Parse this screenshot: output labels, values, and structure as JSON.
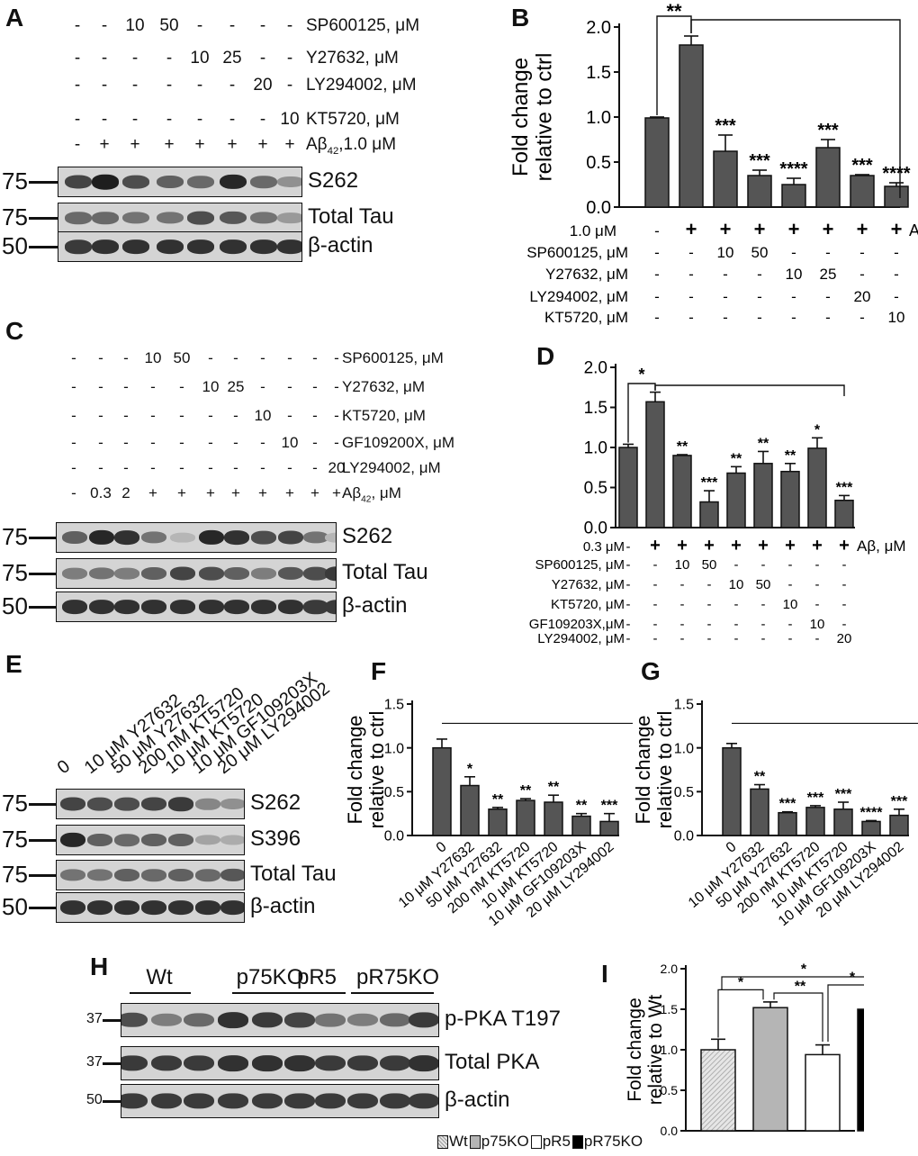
{
  "panels": {
    "A": {
      "letter": "A",
      "treatments": [
        {
          "label": "SP600125, μM",
          "values": [
            "-",
            "-",
            "10",
            "50",
            "-",
            "-",
            "-",
            "-"
          ]
        },
        {
          "label": "Y27632,     μM",
          "values": [
            "-",
            "-",
            "-",
            "-",
            "10",
            "25",
            "-",
            "-"
          ]
        },
        {
          "label": "LY294002, μM",
          "values": [
            "-",
            "-",
            "-",
            "-",
            "-",
            "-",
            "20",
            "-"
          ]
        },
        {
          "label": "KT5720,     μM",
          "values": [
            "-",
            "-",
            "-",
            "-",
            "-",
            "-",
            "-",
            "10"
          ]
        },
        {
          "label": "Aβ42,1.0 μM",
          "values": [
            "-",
            "+",
            "+",
            "+",
            "+",
            "+",
            "+",
            "+"
          ]
        }
      ],
      "blots": [
        {
          "name": "S262",
          "mw": "75",
          "intensity": [
            0.75,
            0.95,
            0.7,
            0.6,
            0.55,
            0.9,
            0.55,
            0.35
          ]
        },
        {
          "name": "Total Tau",
          "mw": "75",
          "intensity": [
            0.55,
            0.55,
            0.5,
            0.5,
            0.7,
            0.65,
            0.5,
            0.3
          ]
        },
        {
          "name": "β-actin",
          "mw": "50",
          "intensity": [
            0.8,
            0.85,
            0.85,
            0.85,
            0.85,
            0.85,
            0.85,
            0.85
          ]
        }
      ]
    },
    "C": {
      "letter": "C",
      "treatments": [
        {
          "label": "SP600125, μM",
          "values": [
            "-",
            "-",
            "-",
            "10",
            "50",
            "-",
            "-",
            "-",
            "-",
            "-",
            "-"
          ]
        },
        {
          "label": "Y27632,     μM",
          "values": [
            "-",
            "-",
            "-",
            "-",
            "-",
            "10",
            "25",
            "-",
            "-",
            "-",
            "-"
          ]
        },
        {
          "label": "KT5720,     μM",
          "values": [
            "-",
            "-",
            "-",
            "-",
            "-",
            "-",
            "-",
            "10",
            "-",
            "-",
            "-"
          ]
        },
        {
          "label": "GF109200X, μM",
          "values": [
            "-",
            "-",
            "-",
            "-",
            "-",
            "-",
            "-",
            "-",
            "10",
            "-",
            "-"
          ]
        },
        {
          "label": "LY294002, μM",
          "values": [
            "-",
            "-",
            "-",
            "-",
            "-",
            "-",
            "-",
            "-",
            "-",
            "-",
            "20"
          ]
        },
        {
          "label": "Aβ42, μM",
          "values": [
            "-",
            "0.3",
            "2",
            "+",
            "+",
            "+",
            "+",
            "+",
            "+",
            "+",
            "+"
          ]
        }
      ],
      "blots": [
        {
          "name": "S262",
          "mw": "75",
          "intensity": [
            0.6,
            0.9,
            0.85,
            0.5,
            0.15,
            0.9,
            0.85,
            0.7,
            0.75,
            0.5,
            0.15
          ]
        },
        {
          "name": "Total Tau",
          "mw": "75",
          "intensity": [
            0.45,
            0.5,
            0.45,
            0.6,
            0.75,
            0.7,
            0.6,
            0.45,
            0.65,
            0.7,
            0.8
          ]
        },
        {
          "name": "β-actin",
          "mw": "50",
          "intensity": [
            0.85,
            0.85,
            0.85,
            0.85,
            0.85,
            0.85,
            0.85,
            0.85,
            0.85,
            0.8,
            0.8
          ]
        }
      ]
    },
    "E": {
      "letter": "E",
      "lane_labels": [
        "0",
        "10 μM Y27632",
        "50 μM Y27632",
        "200 nM KT5720",
        "10 μM KT5720",
        "10 μM GF109203X",
        "20 μM LY294002"
      ],
      "blots": [
        {
          "name": "S262",
          "mw": "75",
          "intensity": [
            0.75,
            0.7,
            0.7,
            0.75,
            0.8,
            0.4,
            0.35
          ]
        },
        {
          "name": "S396",
          "mw": "75",
          "intensity": [
            0.9,
            0.6,
            0.55,
            0.6,
            0.6,
            0.25,
            0.2
          ]
        },
        {
          "name": "Total Tau",
          "mw": "75",
          "intensity": [
            0.5,
            0.5,
            0.6,
            0.55,
            0.6,
            0.55,
            0.65
          ]
        },
        {
          "name": "β-actin",
          "mw": "50",
          "intensity": [
            0.85,
            0.85,
            0.85,
            0.85,
            0.85,
            0.85,
            0.85
          ]
        }
      ]
    },
    "H": {
      "letter": "H",
      "groups": [
        "Wt",
        "p75KO",
        "pR5",
        "pR75KO"
      ],
      "blots": [
        {
          "name": "p-PKA T197",
          "mw": "37",
          "intensity": [
            0.7,
            0.45,
            0.55,
            0.85,
            0.8,
            0.75,
            0.5,
            0.45,
            0.55,
            0.8,
            0.75,
            0.7
          ]
        },
        {
          "name": "Total PKA",
          "mw": "37",
          "intensity": [
            0.8,
            0.8,
            0.8,
            0.85,
            0.85,
            0.85,
            0.8,
            0.8,
            0.8,
            0.85,
            0.85,
            0.85
          ]
        },
        {
          "name": "β-actin",
          "mw": "50",
          "intensity": [
            0.8,
            0.8,
            0.8,
            0.8,
            0.8,
            0.8,
            0.8,
            0.8,
            0.8,
            0.8,
            0.8,
            0.8
          ]
        }
      ]
    }
  },
  "chart_data": [
    {
      "panel": "B",
      "type": "bar",
      "ylabel": "Fold change relative to ctrl",
      "ylim": [
        0,
        2.0
      ],
      "yticks": [
        "0.0",
        "0.5",
        "1.0",
        "1.5",
        "2.0"
      ],
      "values": [
        0.99,
        1.8,
        0.62,
        0.35,
        0.25,
        0.66,
        0.35,
        0.23
      ],
      "errors": [
        0.01,
        0.1,
        0.18,
        0.06,
        0.07,
        0.09,
        0.01,
        0.04
      ],
      "significance": [
        "",
        "",
        "***",
        "***",
        "****",
        "***",
        "***",
        "****"
      ],
      "bracket_labels": [
        "**"
      ],
      "condition_rows": [
        {
          "label": "1.0 μM",
          "suffix": "Aβ",
          "values": [
            "-",
            "+",
            "+",
            "+",
            "+",
            "+",
            "+",
            "+"
          ]
        },
        {
          "label": "SP600125, μM",
          "values": [
            "-",
            "-",
            "10",
            "50",
            "-",
            "-",
            "-",
            "-"
          ]
        },
        {
          "label": "Y27632, μM",
          "values": [
            "-",
            "-",
            "-",
            "-",
            "10",
            "25",
            "-",
            "-"
          ]
        },
        {
          "label": "LY294002, μM",
          "values": [
            "-",
            "-",
            "-",
            "-",
            "-",
            "-",
            "20",
            "-"
          ]
        },
        {
          "label": "KT5720, μM",
          "values": [
            "-",
            "-",
            "-",
            "-",
            "-",
            "-",
            "-",
            "10"
          ]
        }
      ]
    },
    {
      "panel": "D",
      "type": "bar",
      "ylabel": "",
      "ylim": [
        0,
        2.0
      ],
      "yticks": [
        "0.0",
        "0.5",
        "1.0",
        "1.5",
        "2.0"
      ],
      "values": [
        1.0,
        1.57,
        0.9,
        0.32,
        0.68,
        0.8,
        0.7,
        0.99,
        0.34
      ],
      "errors": [
        0.04,
        0.12,
        0.01,
        0.14,
        0.08,
        0.15,
        0.1,
        0.13,
        0.06
      ],
      "significance": [
        "",
        "",
        "**",
        "***",
        "**",
        "**",
        "**",
        "*",
        "***"
      ],
      "bracket_labels": [
        "*"
      ],
      "condition_rows": [
        {
          "label": "0.3 μM",
          "suffix": "Aβ, μM",
          "values": [
            "-",
            "+",
            "+",
            "+",
            "+",
            "+",
            "+",
            "+",
            "+"
          ]
        },
        {
          "label": "SP600125, μM",
          "values": [
            "-",
            "-",
            "10",
            "50",
            "-",
            "-",
            "-",
            "-",
            "-"
          ]
        },
        {
          "label": "Y27632, μM",
          "values": [
            "-",
            "-",
            "-",
            "-",
            "10",
            "50",
            "-",
            "-",
            "-"
          ]
        },
        {
          "label": "KT5720, μM",
          "values": [
            "-",
            "-",
            "-",
            "-",
            "-",
            "-",
            "10",
            "-",
            "-"
          ]
        },
        {
          "label": "GF109203X,μM",
          "values": [
            "-",
            "-",
            "-",
            "-",
            "-",
            "-",
            "-",
            "10",
            "-"
          ]
        },
        {
          "label": "LY294002, μM",
          "values": [
            "-",
            "-",
            "-",
            "-",
            "-",
            "-",
            "-",
            "-",
            "20"
          ]
        }
      ]
    },
    {
      "panel": "F",
      "type": "bar",
      "ylabel": "Fold change relative to ctrl",
      "ylim": [
        0,
        1.5
      ],
      "yticks": [
        "0.0",
        "0.5",
        "1.0",
        "1.5"
      ],
      "categories": [
        "0",
        "10 μM Y27632",
        "50 μM Y27632",
        "200 nM KT5720",
        "10 μM KT5720",
        "10 μM GF109203X",
        "20 μM LY294002"
      ],
      "values": [
        1.0,
        0.57,
        0.3,
        0.4,
        0.38,
        0.22,
        0.16
      ],
      "errors": [
        0.1,
        0.1,
        0.02,
        0.02,
        0.08,
        0.03,
        0.09
      ],
      "significance": [
        "",
        "*",
        "**",
        "**",
        "**",
        "**",
        "***"
      ]
    },
    {
      "panel": "G",
      "type": "bar",
      "ylabel": "Fold change relative to ctrl",
      "ylim": [
        0,
        1.5
      ],
      "yticks": [
        "0.0",
        "0.5",
        "1.0",
        "1.5"
      ],
      "categories": [
        "0",
        "10 μM Y27632",
        "50 μM Y27632",
        "200 nM KT5720",
        "10 μM KT5720",
        "10 μM GF109203X",
        "20 μM LY294002"
      ],
      "values": [
        1.0,
        0.53,
        0.26,
        0.32,
        0.3,
        0.16,
        0.23
      ],
      "errors": [
        0.05,
        0.05,
        0.01,
        0.02,
        0.08,
        0.01,
        0.07
      ],
      "significance": [
        "",
        "**",
        "***",
        "***",
        "***",
        "****",
        "***"
      ]
    },
    {
      "panel": "I",
      "type": "bar",
      "ylabel": "Fold change relative to Wt",
      "ylim": [
        0,
        2.0
      ],
      "yticks": [
        "0.0",
        "0.5",
        "1.0",
        "1.5",
        "2.0"
      ],
      "categories": [
        "Wt",
        "p75KO",
        "pR5",
        "pR75KO"
      ],
      "values": [
        1.0,
        1.52,
        0.94,
        1.5
      ],
      "errors": [
        0.13,
        0.07,
        0.12,
        0.12
      ],
      "fills": [
        "hatch-light",
        "#b5b5b5",
        "#ffffff",
        "#000000"
      ],
      "bracket_labels": [
        "*",
        "**",
        "*",
        "*"
      ],
      "legend": [
        "Wt",
        "p75KO",
        "pR5",
        "pR75KO"
      ],
      "legend_position": "bottom"
    }
  ]
}
